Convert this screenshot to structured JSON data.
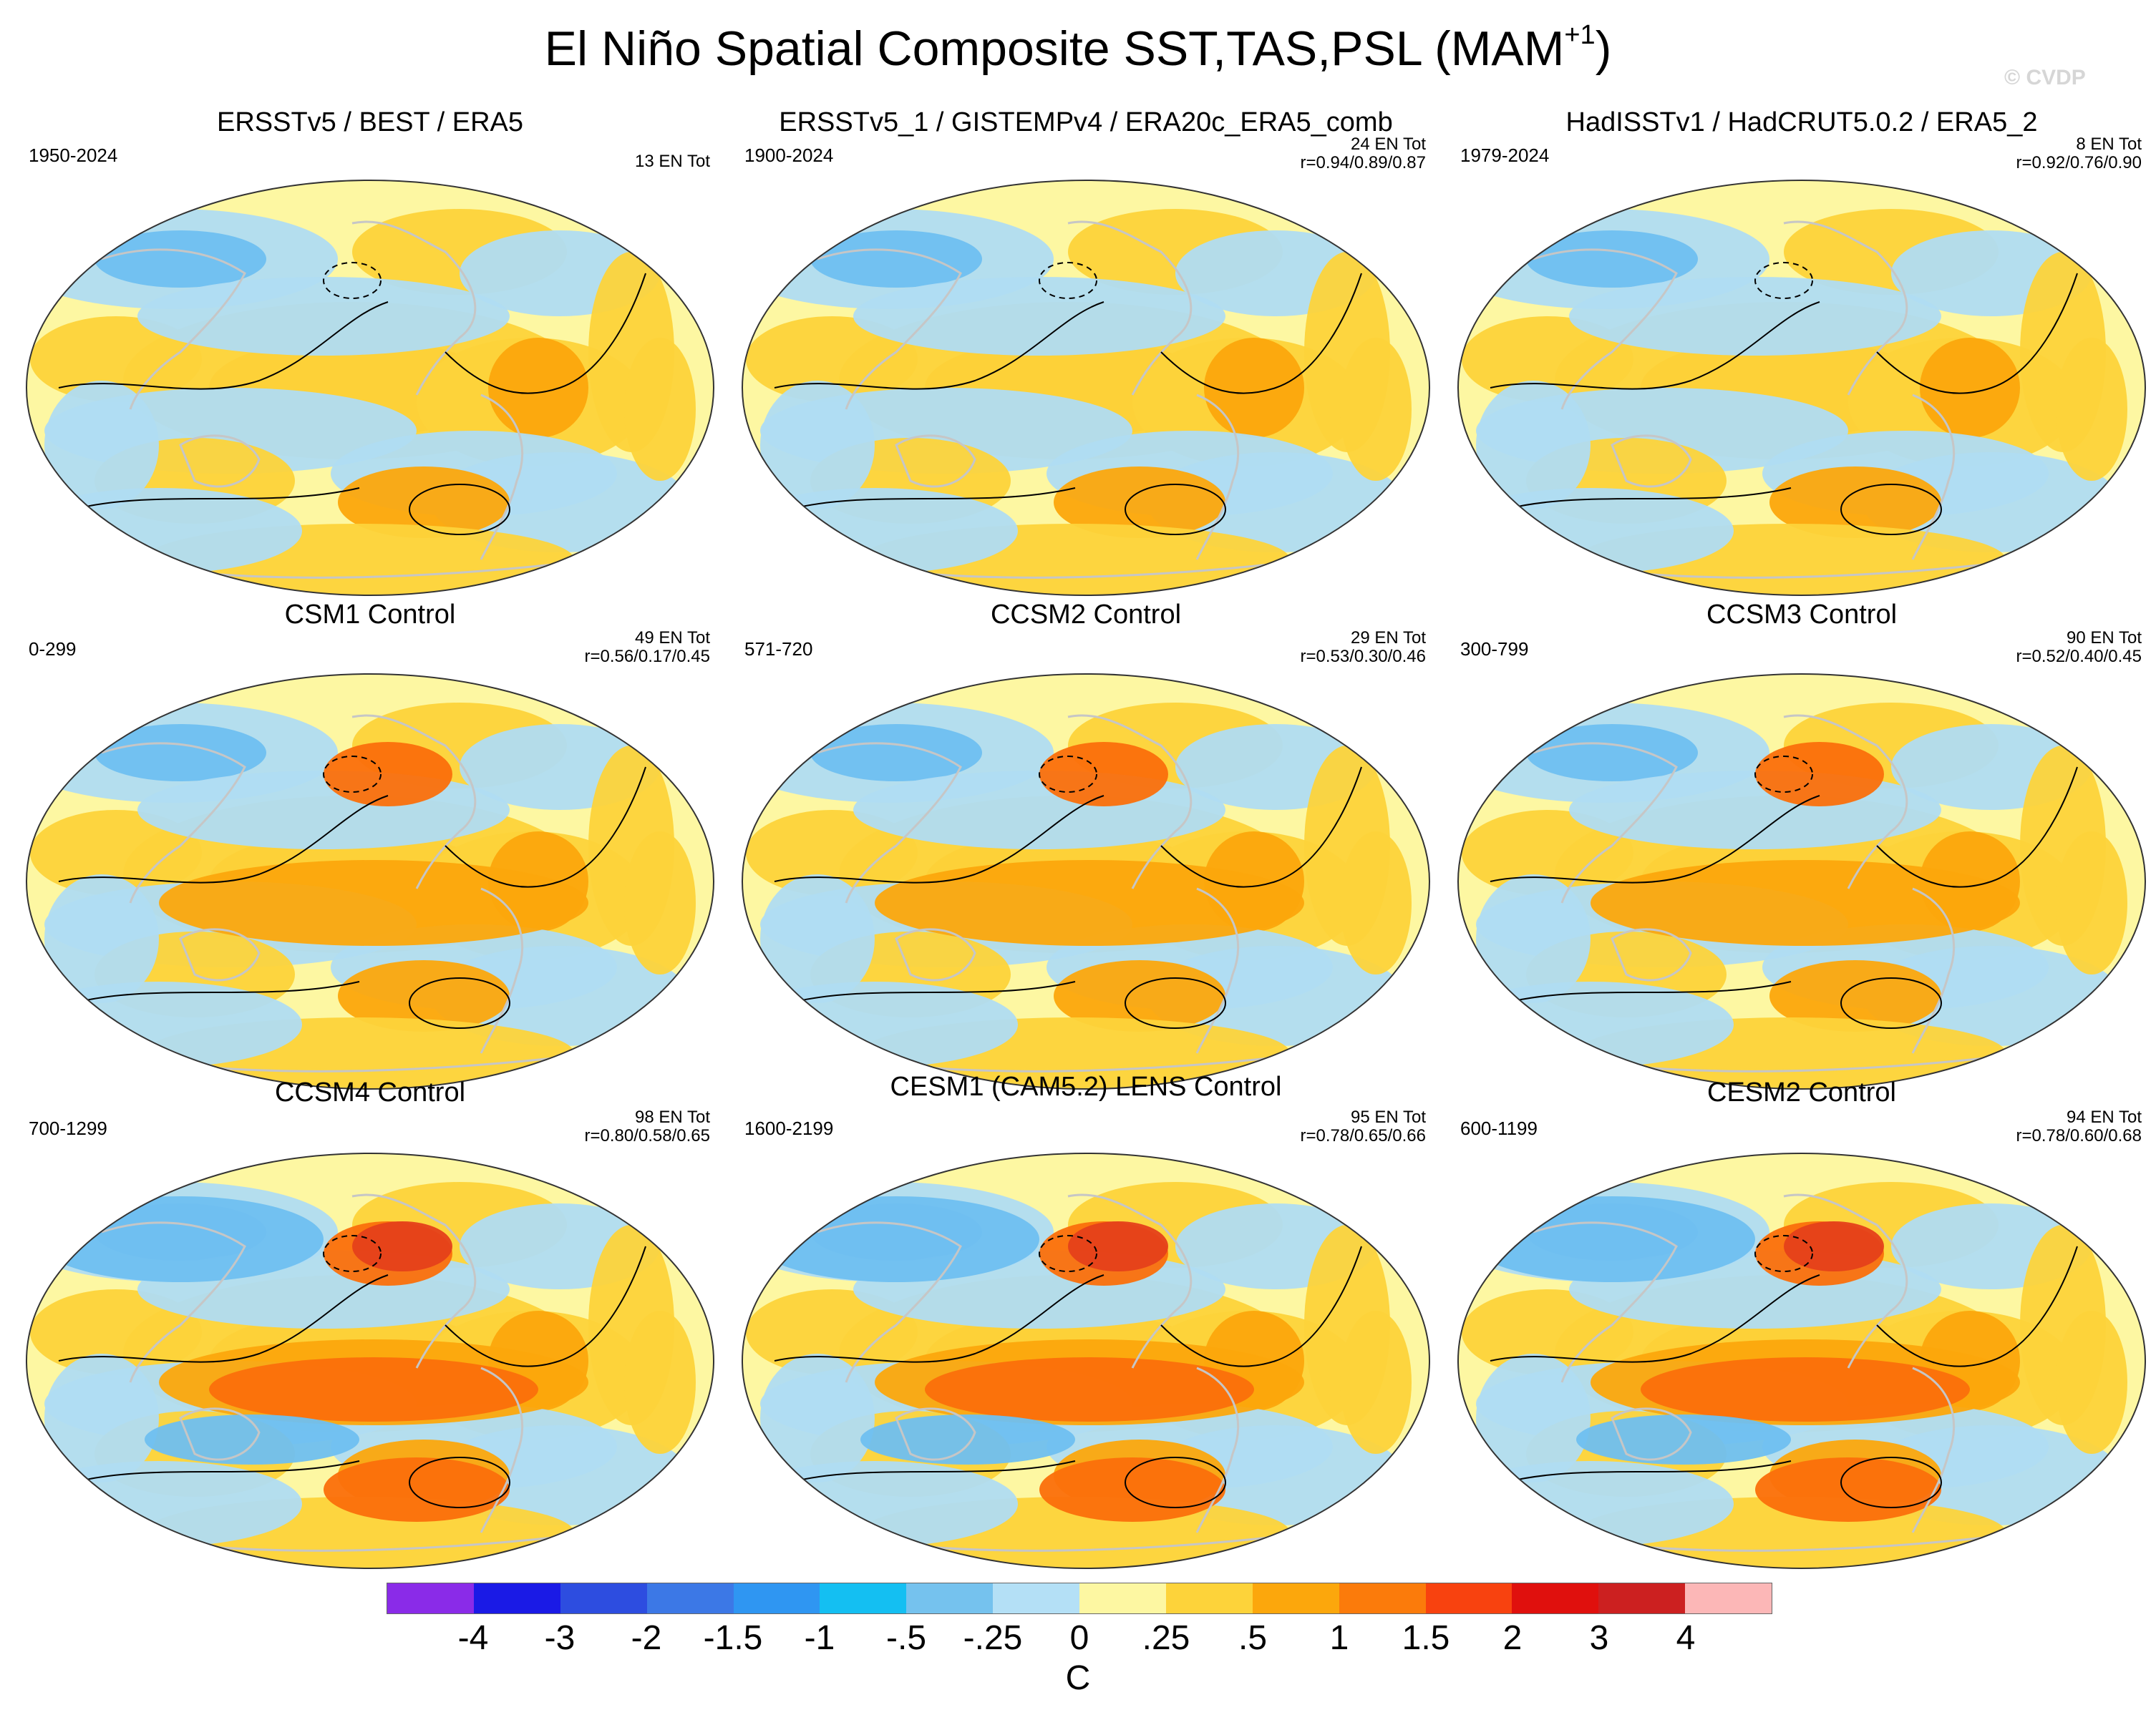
{
  "figure": {
    "title_main": "El Niño Spatial Composite SST,TAS,PSL (MAM",
    "title_sup": "+1",
    "title_close": ")",
    "watermark": "© CVDP"
  },
  "colors": {
    "ocean_base": "#fdf7a2",
    "warm_light": "#fdd33a",
    "warm_mid": "#fca70c",
    "warm_strong": "#fb6f0b",
    "warm_hot": "#e5401a",
    "cool_light": "#b0dcf2",
    "cool_mid": "#6fbff0",
    "cool_strong": "#3a96ee",
    "coast": "#c6c6c6",
    "contour": "#000000"
  },
  "panels": [
    {
      "title": "ERSSTv5 / BEST / ERA5",
      "period": "1950-2024",
      "en_count": "13 EN Tot",
      "corr": ""
    },
    {
      "title": "ERSSTv5_1 / GISTEMPv4 / ERA20c_ERA5_comb",
      "period": "1900-2024",
      "en_count": "24 EN Tot",
      "corr": "r=0.94/0.89/0.87"
    },
    {
      "title": "HadISSTv1 / HadCRUT5.0.2 / ERA5_2",
      "period": "1979-2024",
      "en_count": "8 EN Tot",
      "corr": "r=0.92/0.76/0.90"
    },
    {
      "title": "CSM1 Control",
      "period": "0-299",
      "en_count": "49 EN Tot",
      "corr": "r=0.56/0.17/0.45"
    },
    {
      "title": "CCSM2 Control",
      "period": "571-720",
      "en_count": "29 EN Tot",
      "corr": "r=0.53/0.30/0.46"
    },
    {
      "title": "CCSM3 Control",
      "period": "300-799",
      "en_count": "90 EN Tot",
      "corr": "r=0.52/0.40/0.45"
    },
    {
      "title": "CCSM4 Control",
      "period": "700-1299",
      "en_count": "98 EN Tot",
      "corr": "r=0.80/0.58/0.65"
    },
    {
      "title": "CESM1 (CAM5.2) LENS Control",
      "period": "1600-2199",
      "en_count": "95 EN Tot",
      "corr": "r=0.78/0.65/0.66"
    },
    {
      "title": "CESM2 Control",
      "period": "600-1199",
      "en_count": "94 EN Tot",
      "corr": "r=0.78/0.60/0.68"
    }
  ],
  "colorbar": {
    "colors": [
      "#8a2be8",
      "#1a1ae6",
      "#2d4de0",
      "#3c78e6",
      "#2f96f2",
      "#14bff2",
      "#75c2ee",
      "#b4e0f6",
      "#fdf7a2",
      "#fdd33a",
      "#fca70c",
      "#fb7b0b",
      "#f8420f",
      "#e0100d",
      "#cc2020",
      "#fcb7b7"
    ],
    "tick_labels": [
      "-4",
      "-3",
      "-2",
      "-1.5",
      "-1",
      "-.5",
      "-.25",
      "0",
      ".25",
      ".5",
      "1",
      "1.5",
      "2",
      "3",
      "4"
    ],
    "units": "C"
  }
}
